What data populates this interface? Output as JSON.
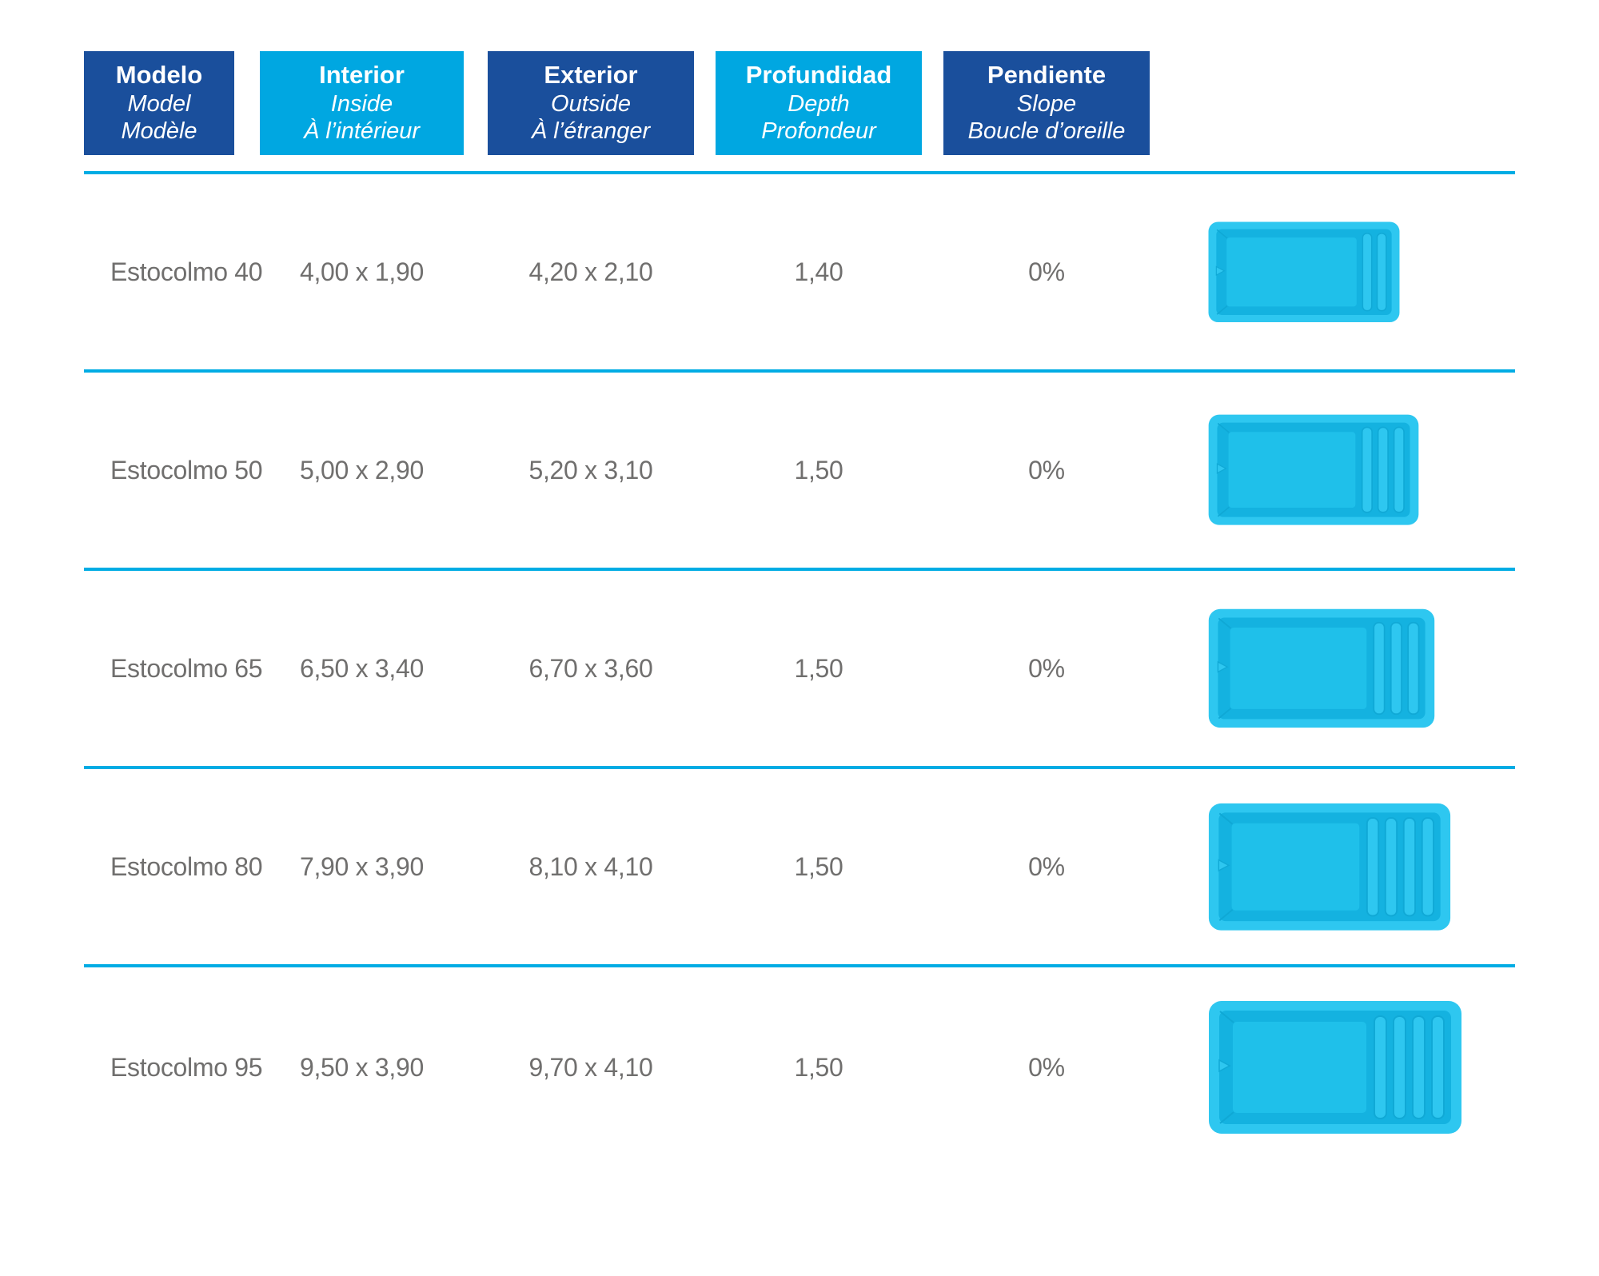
{
  "title": "Estocolmo pool models specification table",
  "colors": {
    "dark_blue": "#1a4f9c",
    "light_blue": "#00a7e1",
    "separator": "#00ace4",
    "body_text": "#706f6e",
    "pool_rim": "#2ec7f0",
    "pool_basin": "#14b2e0",
    "pool_floor": "#1fc0ea"
  },
  "header": {
    "columns": [
      {
        "line1": "Modelo",
        "line2": "Model",
        "line3": "Modèle",
        "tone": "dark"
      },
      {
        "line1": "Interior",
        "line2": "Inside",
        "line3": "À l’intérieur",
        "tone": "light"
      },
      {
        "line1": "Exterior",
        "line2": "Outside",
        "line3": "À l’étranger",
        "tone": "dark"
      },
      {
        "line1": "Profundidad",
        "line2": "Depth",
        "line3": "Profondeur",
        "tone": "light"
      },
      {
        "line1": "Pendiente",
        "line2": "Slope",
        "line3": "Boucle d’oreille",
        "tone": "dark"
      }
    ]
  },
  "rows": [
    {
      "model": "Estocolmo 40",
      "interior": "4,00 x 1,90",
      "exterior": "4,20 x 2,10",
      "depth": "1,40",
      "slope": "0%",
      "pool_steps": 2
    },
    {
      "model": "Estocolmo 50",
      "interior": "5,00 x 2,90",
      "exterior": "5,20 x 3,10",
      "depth": "1,50",
      "slope": "0%",
      "pool_steps": 3
    },
    {
      "model": "Estocolmo 65",
      "interior": "6,50 x 3,40",
      "exterior": "6,70 x 3,60",
      "depth": "1,50",
      "slope": "0%",
      "pool_steps": 3
    },
    {
      "model": "Estocolmo 80",
      "interior": "7,90 x 3,90",
      "exterior": "8,10 x 4,10",
      "depth": "1,50",
      "slope": "0%",
      "pool_steps": 4
    },
    {
      "model": "Estocolmo 95",
      "interior": "9,50 x 3,90",
      "exterior": "9,70 x 4,10",
      "depth": "1,50",
      "slope": "0%",
      "pool_steps": 4
    }
  ],
  "chart_data": {
    "type": "table",
    "columns": [
      "Modelo / Model / Modèle",
      "Interior / Inside / À l’intérieur",
      "Exterior / Outside / À l’étranger",
      "Profundidad / Depth / Profondeur",
      "Pendiente / Slope / Boucle d’oreille"
    ],
    "rows": [
      [
        "Estocolmo 40",
        "4,00 x 1,90",
        "4,20 x 2,10",
        "1,40",
        "0%"
      ],
      [
        "Estocolmo 50",
        "5,00 x 2,90",
        "5,20 x 3,10",
        "1,50",
        "0%"
      ],
      [
        "Estocolmo 65",
        "6,50 x 3,40",
        "6,70 x 3,60",
        "1,50",
        "0%"
      ],
      [
        "Estocolmo 80",
        "7,90 x 3,90",
        "8,10 x 4,10",
        "1,50",
        "0%"
      ],
      [
        "Estocolmo 95",
        "9,50 x 3,90",
        "9,70 x 4,10",
        "1,50",
        "0%"
      ]
    ]
  }
}
